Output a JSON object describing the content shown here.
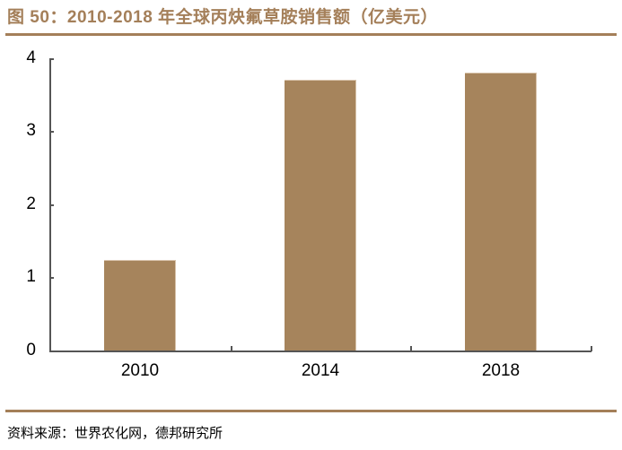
{
  "header": {
    "title": "图 50：2010-2018 年全球丙炔氟草胺销售额（亿美元）"
  },
  "footer": {
    "source": "资料来源：世界农化网，德邦研究所"
  },
  "colors": {
    "accent": "#a47f59",
    "bar": "#a6845c",
    "axis": "#555555"
  },
  "chart_data": {
    "type": "bar",
    "title": "2010-2018 年全球丙炔氟草胺销售额（亿美元）",
    "categories": [
      "2010",
      "2014",
      "2018"
    ],
    "values": [
      1.24,
      3.7,
      3.8
    ],
    "xlabel": "",
    "ylabel": "亿美元",
    "ylim": [
      0,
      4
    ],
    "yticks": [
      "0",
      "1",
      "2",
      "3",
      "4"
    ],
    "grid": false,
    "legend": null
  }
}
